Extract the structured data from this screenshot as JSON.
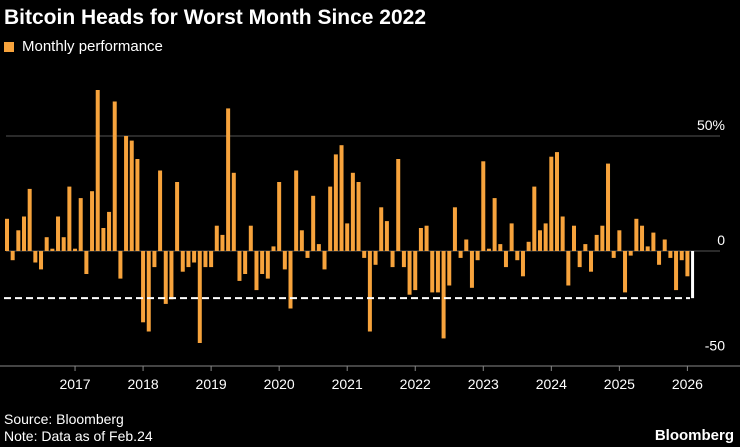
{
  "header": {
    "title": "Bitcoin Heads for Worst Month Since 2022"
  },
  "legend": {
    "label": "Monthly performance",
    "color": "#f7a33c"
  },
  "footer": {
    "source": "Source: Bloomberg",
    "note": "Note: Data as of Feb.24",
    "brand": "Bloomberg"
  },
  "chart_data": {
    "type": "bar",
    "title": "Bitcoin Heads for Worst Month Since 2022",
    "series": [
      {
        "name": "Monthly performance"
      }
    ],
    "start_month": "2016-01",
    "x_tick_labels": [
      "2017",
      "2018",
      "2019",
      "2020",
      "2021",
      "2022",
      "2023",
      "2024",
      "2025",
      "2026"
    ],
    "y_tick_labels": [
      "50%",
      "0",
      "-50"
    ],
    "ylim": [
      -55,
      78
    ],
    "grid": true,
    "legend_position": "top-left",
    "reference_line": {
      "value": -20.5,
      "style": "dashed",
      "color": "#ffffff"
    },
    "values": [
      14,
      -4,
      9,
      15,
      27,
      -5,
      -8,
      6,
      1,
      15,
      6,
      28,
      1,
      23,
      -10,
      26,
      70,
      10,
      17,
      65,
      -12,
      50,
      48,
      40,
      -31,
      -35,
      -7,
      35,
      -23,
      -21,
      30,
      -9,
      -7,
      -5,
      -40,
      -7,
      -7,
      11,
      7,
      62,
      34,
      -13,
      -10,
      11,
      -17,
      -10,
      -12,
      2,
      30,
      -8,
      -25,
      35,
      9,
      -3,
      24,
      3,
      -8,
      28,
      42,
      46,
      12,
      34,
      30,
      -3,
      -35,
      -6,
      19,
      13,
      -7,
      40,
      -7,
      -19,
      -17,
      10,
      11,
      -18,
      -18,
      -38,
      -15,
      19,
      -3,
      5,
      -16,
      -4,
      39,
      1,
      23,
      3,
      -7,
      12,
      -4,
      -11,
      4,
      28,
      9,
      12,
      41,
      43,
      15,
      -15,
      11,
      -7,
      3,
      -9,
      7,
      11,
      38,
      -3,
      9,
      -18,
      -2,
      14,
      11,
      2,
      8,
      -6,
      5,
      -3,
      -17,
      -4,
      -11,
      -20.5
    ],
    "highlight_last": {
      "index": 121,
      "color": "#ffffff"
    }
  }
}
